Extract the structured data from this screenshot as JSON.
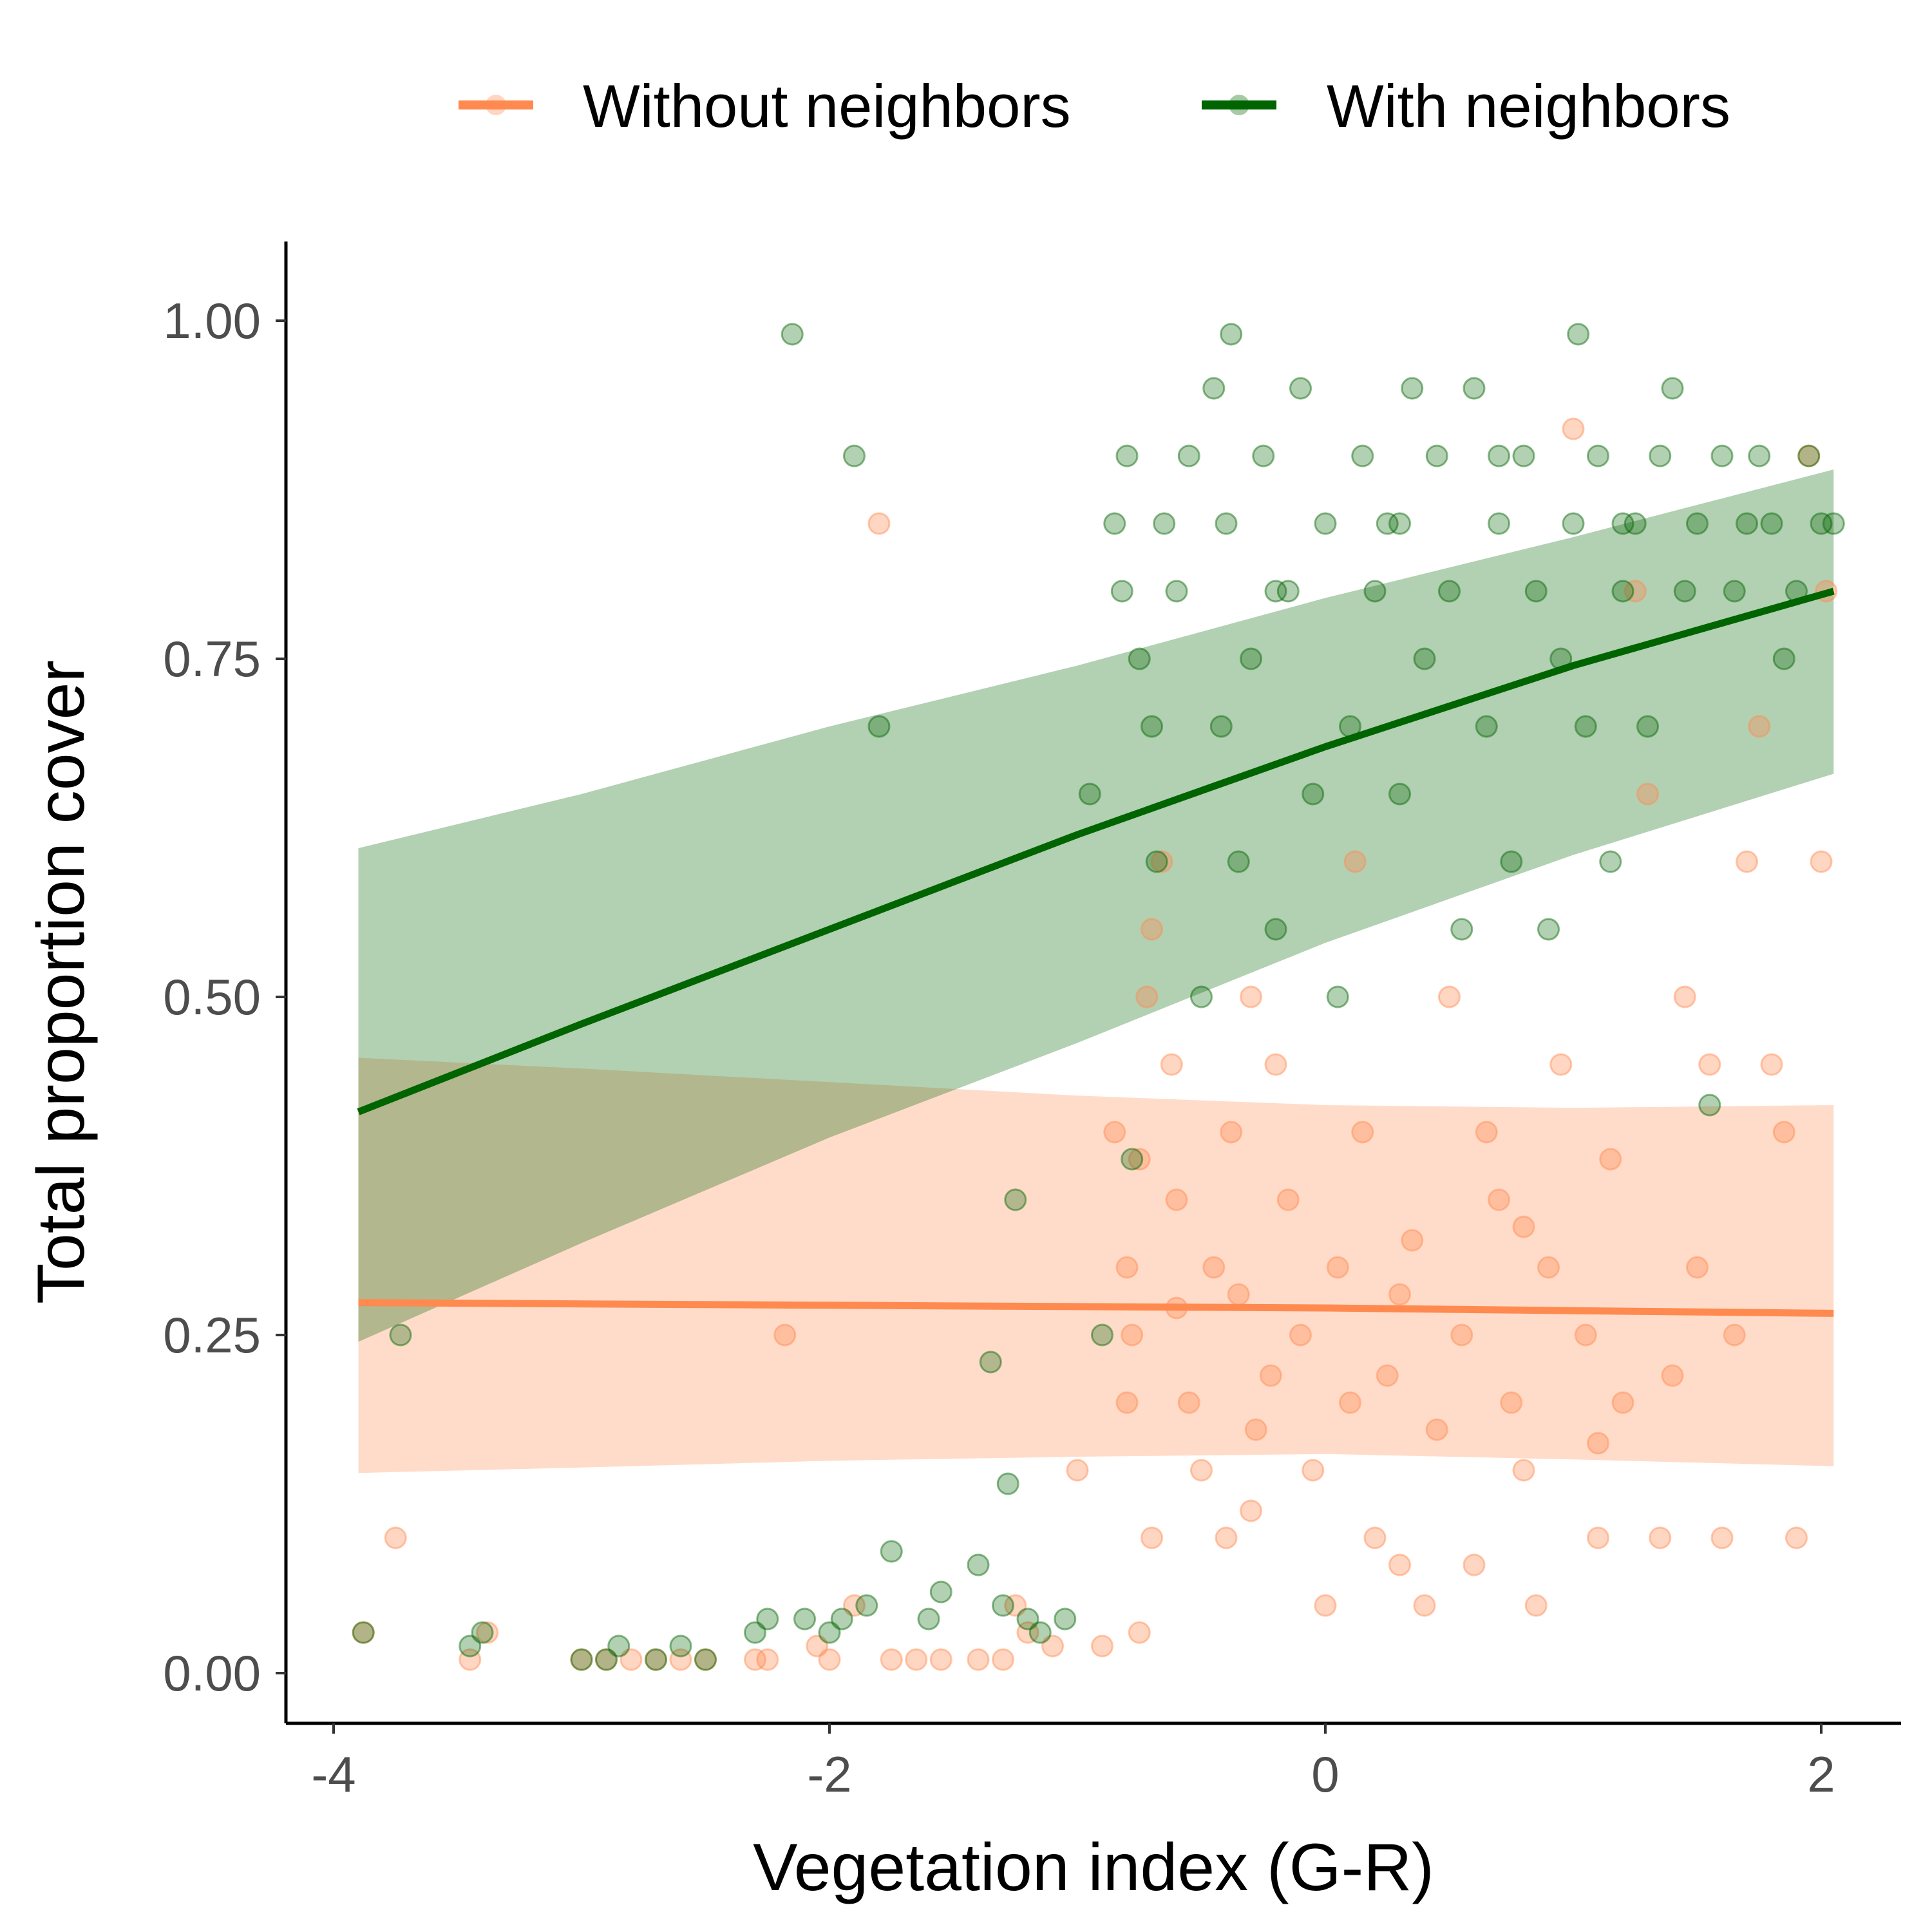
{
  "chart_data": {
    "type": "scatter",
    "title": "",
    "xlabel": "Vegetation index (G-R)",
    "ylabel": "Total proportion cover",
    "xlim": [
      -4.2,
      2.3
    ],
    "ylim": [
      -0.05,
      1.05
    ],
    "x_ticks": [
      -4,
      -2,
      0,
      2
    ],
    "x_tick_labels": [
      "-4",
      "-2",
      "0",
      "2"
    ],
    "y_ticks": [
      0,
      0.25,
      0.5,
      0.75,
      1
    ],
    "y_tick_labels": [
      "0.00",
      "0.25",
      "0.50",
      "0.75",
      "1.00"
    ],
    "grid": false,
    "legend_position": "top",
    "colors": {
      "without": "#ff8a50",
      "with": "#006400"
    },
    "series": [
      {
        "name": "Without neighbors",
        "color": "#ff8a50",
        "fit_line": {
          "x": [
            -3.9,
            -3,
            -2,
            -1,
            0,
            1,
            2.05
          ],
          "y": [
            0.274,
            0.273,
            0.272,
            0.271,
            0.27,
            0.268,
            0.266
          ]
        },
        "ribbon": {
          "x": [
            -3.9,
            -3,
            -2,
            -1,
            0,
            1,
            2.05
          ],
          "lower": [
            0.148,
            0.152,
            0.157,
            0.16,
            0.162,
            0.158,
            0.153
          ],
          "upper": [
            0.455,
            0.447,
            0.437,
            0.427,
            0.42,
            0.418,
            0.42
          ]
        },
        "points": [
          [
            -3.88,
            0.03
          ],
          [
            -3.45,
            0.01
          ],
          [
            -3.38,
            0.03
          ],
          [
            -3.75,
            0.1
          ],
          [
            -3.0,
            0.01
          ],
          [
            -2.9,
            0.01
          ],
          [
            -2.8,
            0.01
          ],
          [
            -2.7,
            0.01
          ],
          [
            -2.6,
            0.01
          ],
          [
            -2.5,
            0.01
          ],
          [
            -2.3,
            0.01
          ],
          [
            -2.25,
            0.01
          ],
          [
            -2.18,
            0.25
          ],
          [
            -2.05,
            0.02
          ],
          [
            -2.0,
            0.01
          ],
          [
            -1.9,
            0.05
          ],
          [
            -1.8,
            0.85
          ],
          [
            -1.75,
            0.01
          ],
          [
            -1.65,
            0.01
          ],
          [
            -1.55,
            0.01
          ],
          [
            -1.4,
            0.01
          ],
          [
            -1.3,
            0.01
          ],
          [
            -1.25,
            0.05
          ],
          [
            -1.2,
            0.03
          ],
          [
            -1.1,
            0.02
          ],
          [
            -1.0,
            0.15
          ],
          [
            -0.9,
            0.02
          ],
          [
            -0.8,
            0.2
          ],
          [
            -0.75,
            0.03
          ],
          [
            -0.7,
            0.1
          ],
          [
            -0.85,
            0.4
          ],
          [
            -0.8,
            0.3
          ],
          [
            -0.78,
            0.25
          ],
          [
            -0.75,
            0.38
          ],
          [
            -0.72,
            0.5
          ],
          [
            -0.7,
            0.55
          ],
          [
            -0.66,
            0.6
          ],
          [
            -0.62,
            0.45
          ],
          [
            -0.6,
            0.35
          ],
          [
            -0.55,
            0.2
          ],
          [
            -0.5,
            0.15
          ],
          [
            -0.45,
            0.3
          ],
          [
            -0.4,
            0.1
          ],
          [
            -0.38,
            0.4
          ],
          [
            -0.35,
            0.28
          ],
          [
            -0.3,
            0.5
          ],
          [
            -0.28,
            0.18
          ],
          [
            -0.22,
            0.22
          ],
          [
            -0.2,
            0.45
          ],
          [
            -0.15,
            0.35
          ],
          [
            -0.1,
            0.25
          ],
          [
            -0.05,
            0.15
          ],
          [
            0.0,
            0.05
          ],
          [
            0.05,
            0.3
          ],
          [
            0.1,
            0.2
          ],
          [
            0.12,
            0.6
          ],
          [
            0.15,
            0.4
          ],
          [
            0.2,
            0.1
          ],
          [
            0.25,
            0.22
          ],
          [
            0.3,
            0.28
          ],
          [
            0.35,
            0.32
          ],
          [
            0.4,
            0.05
          ],
          [
            0.45,
            0.18
          ],
          [
            0.5,
            0.5
          ],
          [
            0.55,
            0.25
          ],
          [
            0.6,
            0.08
          ],
          [
            0.65,
            0.4
          ],
          [
            0.7,
            0.35
          ],
          [
            0.75,
            0.2
          ],
          [
            0.8,
            0.15
          ],
          [
            0.85,
            0.05
          ],
          [
            0.9,
            0.3
          ],
          [
            0.95,
            0.45
          ],
          [
            1.0,
            0.92
          ],
          [
            1.05,
            0.25
          ],
          [
            1.1,
            0.1
          ],
          [
            1.15,
            0.38
          ],
          [
            1.2,
            0.2
          ],
          [
            1.25,
            0.8
          ],
          [
            1.3,
            0.65
          ],
          [
            1.35,
            0.1
          ],
          [
            1.4,
            0.22
          ],
          [
            1.45,
            0.5
          ],
          [
            1.5,
            0.3
          ],
          [
            1.55,
            0.45
          ],
          [
            1.6,
            0.1
          ],
          [
            1.65,
            0.25
          ],
          [
            1.7,
            0.6
          ],
          [
            1.75,
            0.7
          ],
          [
            1.8,
            0.45
          ],
          [
            1.85,
            0.4
          ],
          [
            1.9,
            0.1
          ],
          [
            1.95,
            0.9
          ],
          [
            2.02,
            0.8
          ],
          [
            2.0,
            0.6
          ],
          [
            0.3,
            0.08
          ],
          [
            -0.3,
            0.12
          ],
          [
            -0.6,
            0.27
          ],
          [
            0.8,
            0.33
          ],
          [
            1.1,
            0.17
          ]
        ]
      },
      {
        "name": "With neighbors",
        "color": "#006400",
        "fit_line": {
          "x": [
            -3.9,
            -3,
            -2,
            -1,
            0,
            1,
            2.05
          ],
          "y": [
            0.415,
            0.48,
            0.55,
            0.62,
            0.685,
            0.745,
            0.8
          ]
        },
        "ribbon": {
          "x": [
            -3.9,
            -3,
            -2,
            -1,
            0,
            1,
            2.05
          ],
          "lower": [
            0.245,
            0.318,
            0.396,
            0.466,
            0.54,
            0.605,
            0.665
          ],
          "upper": [
            0.61,
            0.65,
            0.7,
            0.745,
            0.795,
            0.84,
            0.89
          ]
        },
        "points": [
          [
            -3.88,
            0.03
          ],
          [
            -3.45,
            0.02
          ],
          [
            -3.4,
            0.03
          ],
          [
            -3.73,
            0.25
          ],
          [
            -3.0,
            0.01
          ],
          [
            -2.9,
            0.01
          ],
          [
            -2.85,
            0.02
          ],
          [
            -2.7,
            0.01
          ],
          [
            -2.6,
            0.02
          ],
          [
            -2.5,
            0.01
          ],
          [
            -2.3,
            0.03
          ],
          [
            -2.25,
            0.04
          ],
          [
            -2.15,
            0.99
          ],
          [
            -2.1,
            0.04
          ],
          [
            -2.0,
            0.03
          ],
          [
            -1.95,
            0.04
          ],
          [
            -1.9,
            0.9
          ],
          [
            -1.85,
            0.05
          ],
          [
            -1.8,
            0.7
          ],
          [
            -1.75,
            0.09
          ],
          [
            -1.6,
            0.04
          ],
          [
            -1.55,
            0.06
          ],
          [
            -1.4,
            0.08
          ],
          [
            -1.35,
            0.23
          ],
          [
            -1.3,
            0.05
          ],
          [
            -1.28,
            0.14
          ],
          [
            -1.25,
            0.35
          ],
          [
            -1.2,
            0.04
          ],
          [
            -1.15,
            0.03
          ],
          [
            -1.05,
            0.04
          ],
          [
            -0.95,
            0.65
          ],
          [
            -0.9,
            0.25
          ],
          [
            -0.85,
            0.85
          ],
          [
            -0.82,
            0.8
          ],
          [
            -0.8,
            0.9
          ],
          [
            -0.78,
            0.38
          ],
          [
            -0.75,
            0.75
          ],
          [
            -0.7,
            0.7
          ],
          [
            -0.68,
            0.6
          ],
          [
            -0.65,
            0.85
          ],
          [
            -0.6,
            0.8
          ],
          [
            -0.55,
            0.9
          ],
          [
            -0.5,
            0.5
          ],
          [
            -0.45,
            0.95
          ],
          [
            -0.42,
            0.7
          ],
          [
            -0.4,
            0.85
          ],
          [
            -0.38,
            0.99
          ],
          [
            -0.35,
            0.6
          ],
          [
            -0.3,
            0.75
          ],
          [
            -0.25,
            0.9
          ],
          [
            -0.2,
            0.55
          ],
          [
            -0.15,
            0.8
          ],
          [
            -0.1,
            0.95
          ],
          [
            -0.05,
            0.65
          ],
          [
            0.0,
            0.85
          ],
          [
            0.05,
            0.5
          ],
          [
            0.1,
            0.7
          ],
          [
            0.15,
            0.9
          ],
          [
            0.2,
            0.8
          ],
          [
            0.25,
            0.85
          ],
          [
            0.3,
            0.65
          ],
          [
            0.35,
            0.95
          ],
          [
            0.4,
            0.75
          ],
          [
            0.45,
            0.9
          ],
          [
            0.5,
            0.8
          ],
          [
            0.55,
            0.55
          ],
          [
            0.6,
            0.95
          ],
          [
            0.65,
            0.7
          ],
          [
            0.7,
            0.85
          ],
          [
            0.75,
            0.6
          ],
          [
            0.8,
            0.9
          ],
          [
            0.85,
            0.8
          ],
          [
            0.9,
            0.55
          ],
          [
            0.95,
            0.75
          ],
          [
            1.0,
            0.85
          ],
          [
            1.02,
            0.99
          ],
          [
            1.05,
            0.7
          ],
          [
            1.1,
            0.9
          ],
          [
            1.15,
            0.6
          ],
          [
            1.2,
            0.8
          ],
          [
            1.25,
            0.85
          ],
          [
            1.3,
            0.7
          ],
          [
            1.35,
            0.9
          ],
          [
            1.4,
            0.95
          ],
          [
            1.45,
            0.8
          ],
          [
            1.5,
            0.85
          ],
          [
            1.55,
            0.42
          ],
          [
            1.6,
            0.9
          ],
          [
            1.65,
            0.8
          ],
          [
            1.7,
            0.85
          ],
          [
            1.75,
            0.9
          ],
          [
            1.8,
            0.85
          ],
          [
            1.85,
            0.75
          ],
          [
            1.9,
            0.8
          ],
          [
            1.95,
            0.9
          ],
          [
            2.0,
            0.85
          ],
          [
            2.05,
            0.85
          ],
          [
            -0.2,
            0.8
          ],
          [
            0.3,
            0.85
          ],
          [
            0.7,
            0.9
          ],
          [
            1.2,
            0.85
          ]
        ]
      }
    ]
  },
  "legend": {
    "items": [
      {
        "label": "Without neighbors",
        "color": "#ff8a50"
      },
      {
        "label": "With neighbors",
        "color": "#006400"
      }
    ]
  }
}
